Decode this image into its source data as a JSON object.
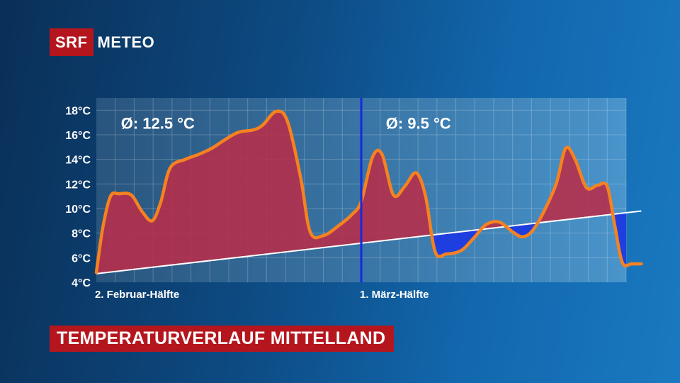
{
  "brand": {
    "logo_box": "SRF",
    "logo_text": "METEO",
    "color": "#b5161e"
  },
  "banner": {
    "title": "TEMPERATURVERLAUF MITTELLAND"
  },
  "chart_data": {
    "type": "area",
    "y_unit": "°C",
    "ylim": [
      4,
      19
    ],
    "yticks": [
      4,
      6,
      8,
      10,
      12,
      14,
      16,
      18
    ],
    "ytick_labels": [
      "4°C",
      "6°C",
      "8°C",
      "10°C",
      "12°C",
      "14°C",
      "16°C",
      "18°C"
    ],
    "day_count": 28,
    "grid": true,
    "x_labels": [
      {
        "text": "2. Februar-Hälfte",
        "day": 0
      },
      {
        "text": "1. März-Hälfte",
        "day": 14
      }
    ],
    "divider_day": 14,
    "divider_color": "#1628e0",
    "annotations": [
      {
        "text": "Ø: 12.5 °C",
        "day": 1.3,
        "y": 16.5
      },
      {
        "text": "Ø:  9.5 °C",
        "day": 15.3,
        "y": 16.5
      }
    ],
    "series": [
      {
        "role": "observed",
        "color": "#f58220",
        "points": [
          [
            0,
            4.8
          ],
          [
            0.35,
            8.5
          ],
          [
            0.75,
            11.0
          ],
          [
            1.2,
            11.2
          ],
          [
            1.85,
            11.1
          ],
          [
            2.4,
            9.8
          ],
          [
            2.95,
            9.0
          ],
          [
            3.4,
            10.5
          ],
          [
            3.9,
            13.3
          ],
          [
            4.7,
            14.0
          ],
          [
            5.4,
            14.4
          ],
          [
            6.1,
            14.9
          ],
          [
            6.8,
            15.6
          ],
          [
            7.5,
            16.2
          ],
          [
            8.3,
            16.4
          ],
          [
            8.8,
            16.8
          ],
          [
            9.5,
            17.9
          ],
          [
            10.1,
            17.1
          ],
          [
            10.8,
            12.5
          ],
          [
            11.3,
            8.1
          ],
          [
            12.0,
            7.8
          ],
          [
            12.8,
            8.6
          ],
          [
            13.5,
            9.5
          ],
          [
            14.0,
            10.6
          ],
          [
            14.6,
            14.2
          ],
          [
            15.1,
            14.4
          ],
          [
            15.7,
            11.1
          ],
          [
            16.3,
            11.8
          ],
          [
            16.9,
            12.9
          ],
          [
            17.4,
            11.0
          ],
          [
            17.9,
            6.5
          ],
          [
            18.5,
            6.3
          ],
          [
            19.3,
            6.6
          ],
          [
            20.0,
            7.7
          ],
          [
            20.6,
            8.7
          ],
          [
            21.3,
            8.9
          ],
          [
            22.0,
            8.1
          ],
          [
            22.5,
            7.7
          ],
          [
            23.0,
            8.1
          ],
          [
            23.6,
            9.6
          ],
          [
            24.3,
            12.0
          ],
          [
            24.8,
            14.9
          ],
          [
            25.3,
            14.0
          ],
          [
            25.9,
            11.7
          ],
          [
            26.5,
            11.9
          ],
          [
            27.0,
            11.8
          ],
          [
            27.4,
            8.6
          ],
          [
            27.8,
            5.6
          ],
          [
            28.3,
            5.5
          ],
          [
            28.8,
            5.5
          ]
        ]
      },
      {
        "role": "normal",
        "color": "#ffffff",
        "points": [
          [
            0,
            4.7
          ],
          [
            28.8,
            9.8
          ]
        ]
      }
    ],
    "above_normal_fill": "#b52f4b",
    "below_normal_fill": "#1f3ee0"
  }
}
